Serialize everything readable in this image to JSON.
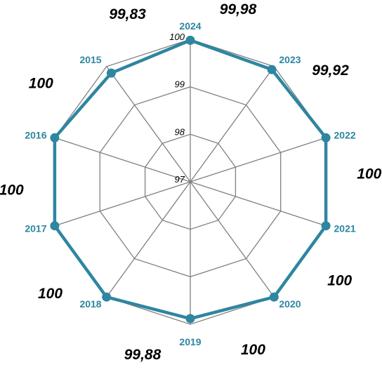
{
  "chart_data": {
    "type": "radar",
    "categories": [
      "2024",
      "2023",
      "2022",
      "2021",
      "2020",
      "2019",
      "2018",
      "2017",
      "2016",
      "2015"
    ],
    "series": [
      {
        "values": [
          99.98,
          99.92,
          100,
          100,
          100,
          99.88,
          100,
          100,
          100,
          99.83
        ]
      }
    ],
    "data_labels": [
      "99,98",
      "99,92",
      "100",
      "100",
      "100",
      "99,88",
      "100",
      "100",
      "100",
      "99,83"
    ],
    "rticks": [
      97,
      98,
      99,
      100
    ],
    "rtick_labels": [
      "97",
      "98",
      "99",
      "100"
    ],
    "rlim": [
      97,
      100
    ],
    "grid": true,
    "legend": "none",
    "colors": {
      "series": "#2E86A0",
      "grid": "#808080",
      "category_text": "#2E86A0"
    }
  }
}
